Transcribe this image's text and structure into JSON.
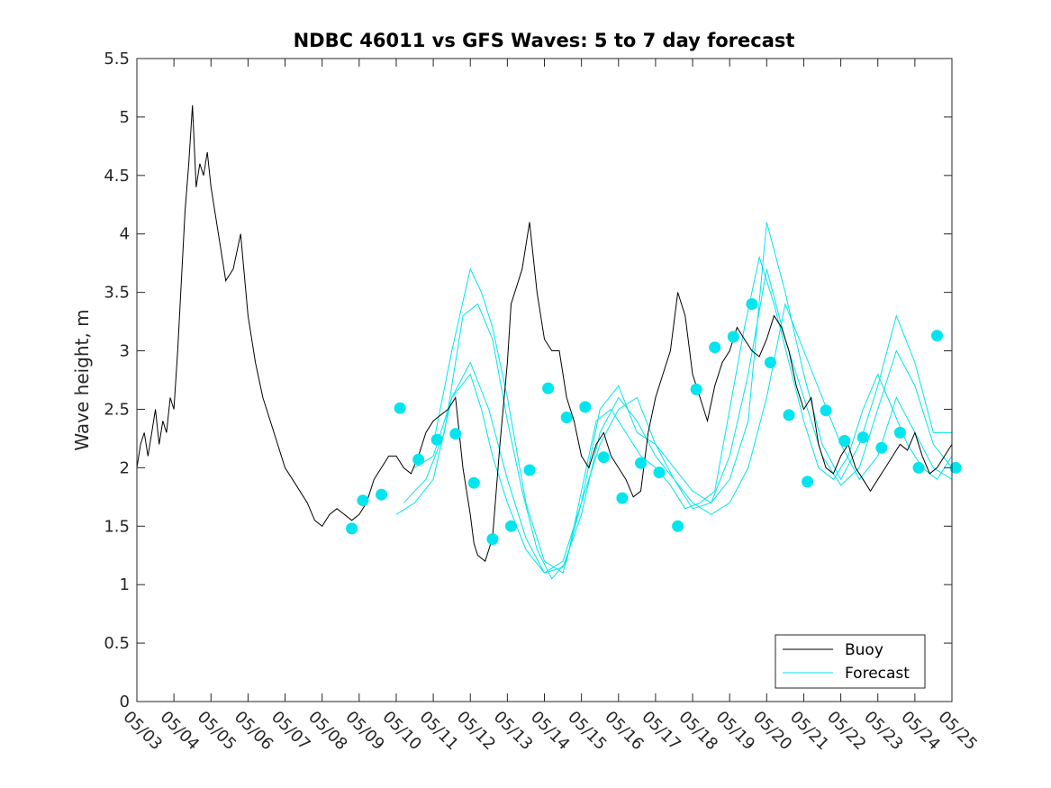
{
  "chart_data": {
    "type": "line",
    "title": "NDBC 46011 vs GFS Waves: 5 to 7 day forecast",
    "xlabel": "",
    "ylabel": "Wave height, m",
    "x_tick_labels": [
      "05/03",
      "05/04",
      "05/05",
      "05/06",
      "05/07",
      "05/08",
      "05/09",
      "05/10",
      "05/11",
      "05/12",
      "05/13",
      "05/14",
      "05/15",
      "05/16",
      "05/17",
      "05/18",
      "05/19",
      "05/20",
      "05/21",
      "05/22",
      "05/23",
      "05/24",
      "05/25"
    ],
    "xlim": [
      "05/03",
      "05/25"
    ],
    "ylim": [
      0,
      5.5
    ],
    "y_ticks": [
      0,
      0.5,
      1,
      1.5,
      2,
      2.5,
      3,
      3.5,
      4,
      4.5,
      5,
      5.5
    ],
    "y_tick_labels": [
      "0",
      "0.5",
      "1",
      "1.5",
      "2",
      "2.5",
      "3",
      "3.5",
      "4",
      "4.5",
      "5",
      "5.5"
    ],
    "grid": false,
    "legend_position": "bottom-right",
    "colors": {
      "buoy": "#000000",
      "forecast": "#00e5ee"
    },
    "series": [
      {
        "name": "Buoy",
        "style": "line",
        "x_unit": "days since 05/03",
        "x": [
          0,
          0.1,
          0.2,
          0.3,
          0.4,
          0.5,
          0.6,
          0.7,
          0.8,
          0.9,
          1.0,
          1.1,
          1.2,
          1.3,
          1.4,
          1.5,
          1.6,
          1.7,
          1.8,
          1.9,
          2.0,
          2.2,
          2.4,
          2.6,
          2.8,
          3.0,
          3.2,
          3.4,
          3.6,
          3.8,
          4.0,
          4.2,
          4.4,
          4.6,
          4.8,
          5.0,
          5.2,
          5.4,
          5.6,
          5.8,
          6.0,
          6.2,
          6.4,
          6.6,
          6.8,
          7.0,
          7.2,
          7.4,
          7.6,
          7.8,
          8.0,
          8.2,
          8.4,
          8.6,
          8.8,
          9.0,
          9.1,
          9.2,
          9.4,
          9.6,
          9.8,
          10.0,
          10.1,
          10.2,
          10.3,
          10.4,
          10.5,
          10.6,
          10.8,
          11.0,
          11.2,
          11.4,
          11.5,
          11.6,
          11.8,
          12.0,
          12.2,
          12.4,
          12.6,
          12.8,
          13.0,
          13.2,
          13.4,
          13.6,
          13.8,
          14.0,
          14.2,
          14.4,
          14.6,
          14.8,
          15.0,
          15.2,
          15.4,
          15.6,
          15.8,
          16.0,
          16.2,
          16.4,
          16.6,
          16.8,
          17.0,
          17.2,
          17.4,
          17.6,
          17.8,
          18.0,
          18.2,
          18.4,
          18.6,
          18.8,
          19.0,
          19.2,
          19.4,
          19.6,
          19.8,
          20.0,
          20.2,
          20.4,
          20.6,
          20.8,
          21.0,
          21.2,
          21.4,
          21.6,
          21.8,
          22.0
        ],
        "y": [
          2.0,
          2.2,
          2.3,
          2.1,
          2.3,
          2.5,
          2.2,
          2.4,
          2.3,
          2.6,
          2.5,
          3.0,
          3.6,
          4.2,
          4.6,
          5.1,
          4.4,
          4.6,
          4.5,
          4.7,
          4.4,
          4.0,
          3.6,
          3.7,
          4.0,
          3.3,
          2.9,
          2.6,
          2.4,
          2.2,
          2.0,
          1.9,
          1.8,
          1.7,
          1.55,
          1.5,
          1.6,
          1.65,
          1.6,
          1.55,
          1.6,
          1.7,
          1.9,
          2.0,
          2.1,
          2.1,
          2.0,
          1.95,
          2.1,
          2.3,
          2.4,
          2.45,
          2.5,
          2.6,
          2.0,
          1.6,
          1.35,
          1.25,
          1.2,
          1.4,
          2.2,
          2.9,
          3.4,
          3.5,
          3.6,
          3.7,
          3.9,
          4.1,
          3.5,
          3.1,
          3.0,
          3.0,
          2.8,
          2.6,
          2.4,
          2.1,
          2.0,
          2.2,
          2.3,
          2.1,
          2.0,
          1.9,
          1.75,
          1.8,
          2.3,
          2.6,
          2.8,
          3.0,
          3.5,
          3.3,
          2.8,
          2.6,
          2.4,
          2.7,
          2.9,
          3.0,
          3.2,
          3.1,
          3.0,
          2.95,
          3.1,
          3.3,
          3.2,
          3.0,
          2.7,
          2.5,
          2.6,
          2.2,
          2.0,
          1.95,
          2.1,
          2.2,
          2.0,
          1.9,
          1.8,
          1.9,
          2.0,
          2.1,
          2.2,
          2.15,
          2.3,
          2.1,
          1.95,
          2.0,
          2.1,
          2.2
        ]
      },
      {
        "name": "Forecast",
        "style": "lines",
        "x_unit": "days since 05/03",
        "lines": [
          {
            "x": [
              7.0,
              7.5,
              8.0,
              8.5,
              9.0,
              9.3,
              9.6,
              10.0,
              10.5,
              11.0,
              11.5,
              12.0,
              12.5,
              13.0,
              13.5,
              14.0,
              14.5,
              15.0,
              15.5,
              16.0,
              16.5,
              17.0,
              17.5,
              18.0,
              18.5,
              19.0,
              19.5,
              20.0,
              20.5,
              21.0,
              21.5,
              22.0
            ],
            "y": [
              1.6,
              1.7,
              1.9,
              2.6,
              2.8,
              2.5,
              2.1,
              1.7,
              1.3,
              1.1,
              1.2,
              1.7,
              2.2,
              2.5,
              2.6,
              2.2,
              1.9,
              1.7,
              1.6,
              1.7,
              2.0,
              2.6,
              3.4,
              3.0,
              2.6,
              2.2,
              1.9,
              2.1,
              2.6,
              2.3,
              2.0,
              1.9
            ]
          },
          {
            "x": [
              7.2,
              7.8,
              8.3,
              8.8,
              9.2,
              9.6,
              10.0,
              10.4,
              10.8,
              11.2,
              11.6,
              12.0,
              12.4,
              12.8,
              13.2,
              13.6,
              14.0,
              14.4,
              14.8,
              15.2,
              15.6,
              16.0,
              16.4,
              16.8,
              17.2,
              17.6,
              18.0,
              18.4,
              18.8,
              19.2,
              19.6,
              20.0,
              20.4,
              20.8,
              21.2,
              21.6,
              22.0
            ],
            "y": [
              1.7,
              1.9,
              2.3,
              3.3,
              3.4,
              3.1,
              2.4,
              1.8,
              1.3,
              1.05,
              1.2,
              1.8,
              2.4,
              2.5,
              2.3,
              2.1,
              2.0,
              1.85,
              1.65,
              1.7,
              1.8,
              2.5,
              3.2,
              3.8,
              3.4,
              2.9,
              2.4,
              2.0,
              1.9,
              2.1,
              2.5,
              2.8,
              2.5,
              2.2,
              2.0,
              1.9,
              2.1
            ]
          },
          {
            "x": [
              7.5,
              8.0,
              8.5,
              9.0,
              9.5,
              10.0,
              10.5,
              11.0,
              11.5,
              12.0,
              12.5,
              13.0,
              13.5,
              14.0,
              14.5,
              15.0,
              15.5,
              16.0,
              16.5,
              17.0,
              17.5,
              18.0,
              18.5,
              19.0,
              19.5,
              20.0,
              20.5,
              21.0,
              21.5,
              22.0
            ],
            "y": [
              2.0,
              2.1,
              2.6,
              2.9,
              2.5,
              1.9,
              1.4,
              1.1,
              1.15,
              1.6,
              2.3,
              2.6,
              2.4,
              2.1,
              1.9,
              1.65,
              1.7,
              2.1,
              2.8,
              3.7,
              3.1,
              2.6,
              2.1,
              1.85,
              2.0,
              2.5,
              3.0,
              2.7,
              2.2,
              2.0
            ]
          },
          {
            "x": [
              8.0,
              8.5,
              9.0,
              9.3,
              9.6,
              10.0,
              10.5,
              11.0,
              11.5,
              12.0,
              12.5,
              13.0,
              13.5,
              14.0,
              14.5,
              15.0,
              15.5,
              16.0,
              16.5,
              17.0,
              17.5,
              18.0,
              18.5,
              19.0,
              19.5,
              20.0,
              20.5,
              21.0,
              21.5,
              22.0
            ],
            "y": [
              2.2,
              3.0,
              3.7,
              3.5,
              3.2,
              2.6,
              1.7,
              1.2,
              1.1,
              1.7,
              2.5,
              2.7,
              2.3,
              2.2,
              2.0,
              1.8,
              1.7,
              1.9,
              2.4,
              4.1,
              3.5,
              2.8,
              2.2,
              1.9,
              2.2,
              2.7,
              3.3,
              2.9,
              2.3,
              2.3
            ]
          }
        ]
      },
      {
        "name": "",
        "style": "markers",
        "x_unit": "days since 05/03",
        "x": [
          5.8,
          6.1,
          6.6,
          7.1,
          7.6,
          8.1,
          8.6,
          9.1,
          9.6,
          10.1,
          10.6,
          11.1,
          11.6,
          12.1,
          12.6,
          13.1,
          13.6,
          14.1,
          14.6,
          15.1,
          15.6,
          16.1,
          16.6,
          17.1,
          17.6,
          18.1,
          18.6,
          19.1,
          19.6,
          20.1,
          20.6,
          21.1,
          21.6,
          22.1
        ],
        "y": [
          1.48,
          1.72,
          1.77,
          2.51,
          2.07,
          2.24,
          2.29,
          1.87,
          1.39,
          1.5,
          1.98,
          2.68,
          2.43,
          2.52,
          2.09,
          1.74,
          2.04,
          1.96,
          1.5,
          2.67,
          3.03,
          3.12,
          3.4,
          2.9,
          2.45,
          1.88,
          2.49,
          2.23,
          2.26,
          2.17,
          2.3,
          2.0,
          3.13,
          2.0
        ]
      }
    ]
  }
}
